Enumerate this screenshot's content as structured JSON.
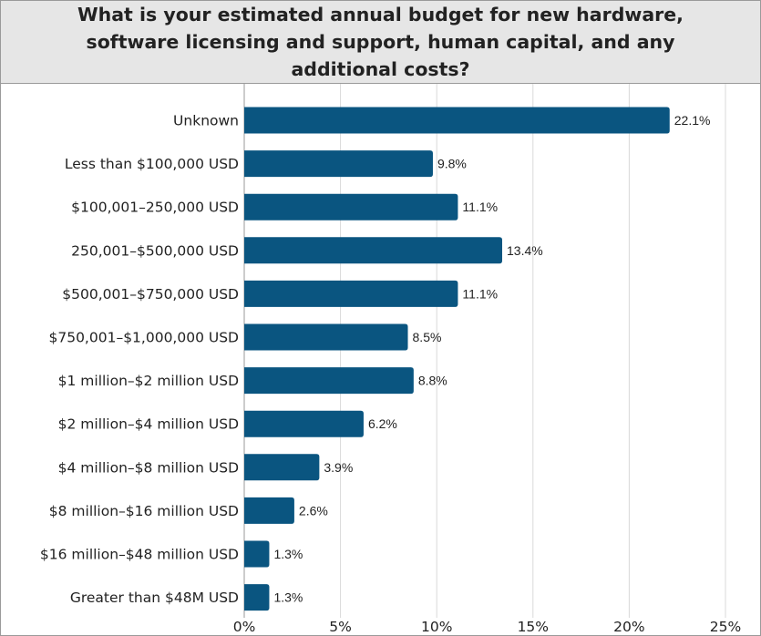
{
  "chart_data": {
    "type": "bar",
    "orientation": "horizontal",
    "title": "What is your estimated annual budget for new hardware, software licensing and support, human capital, and any additional costs?",
    "categories": [
      "Unknown",
      "Less than $100,000 USD",
      "$100,001–250,000 USD",
      "250,001–$500,000 USD",
      "$500,001–$750,000 USD",
      "$750,001–$1,000,000 USD",
      "$1 million–$2 million USD",
      "$2 million–$4 million USD",
      "$4 million–$8 million USD",
      "$8 million–$16 million USD",
      "$16 million–$48 million USD",
      "Greater than $48M USD"
    ],
    "values": [
      22.1,
      9.8,
      11.1,
      13.4,
      11.1,
      8.5,
      8.8,
      6.2,
      3.9,
      2.6,
      1.3,
      1.3
    ],
    "value_labels": [
      "22.1%",
      "9.8%",
      "11.1%",
      "13.4%",
      "11.1%",
      "8.5%",
      "8.8%",
      "6.2%",
      "3.9%",
      "2.6%",
      "1.3%",
      "1.3%"
    ],
    "xlim": [
      0,
      25
    ],
    "x_ticks": [
      0,
      5,
      10,
      15,
      20,
      25
    ],
    "x_tick_labels": [
      "0%",
      "5%",
      "10%",
      "15%",
      "20%",
      "25%"
    ],
    "grid": true,
    "bar_color": "#0a5580",
    "header_color": "#e6e6e6"
  }
}
